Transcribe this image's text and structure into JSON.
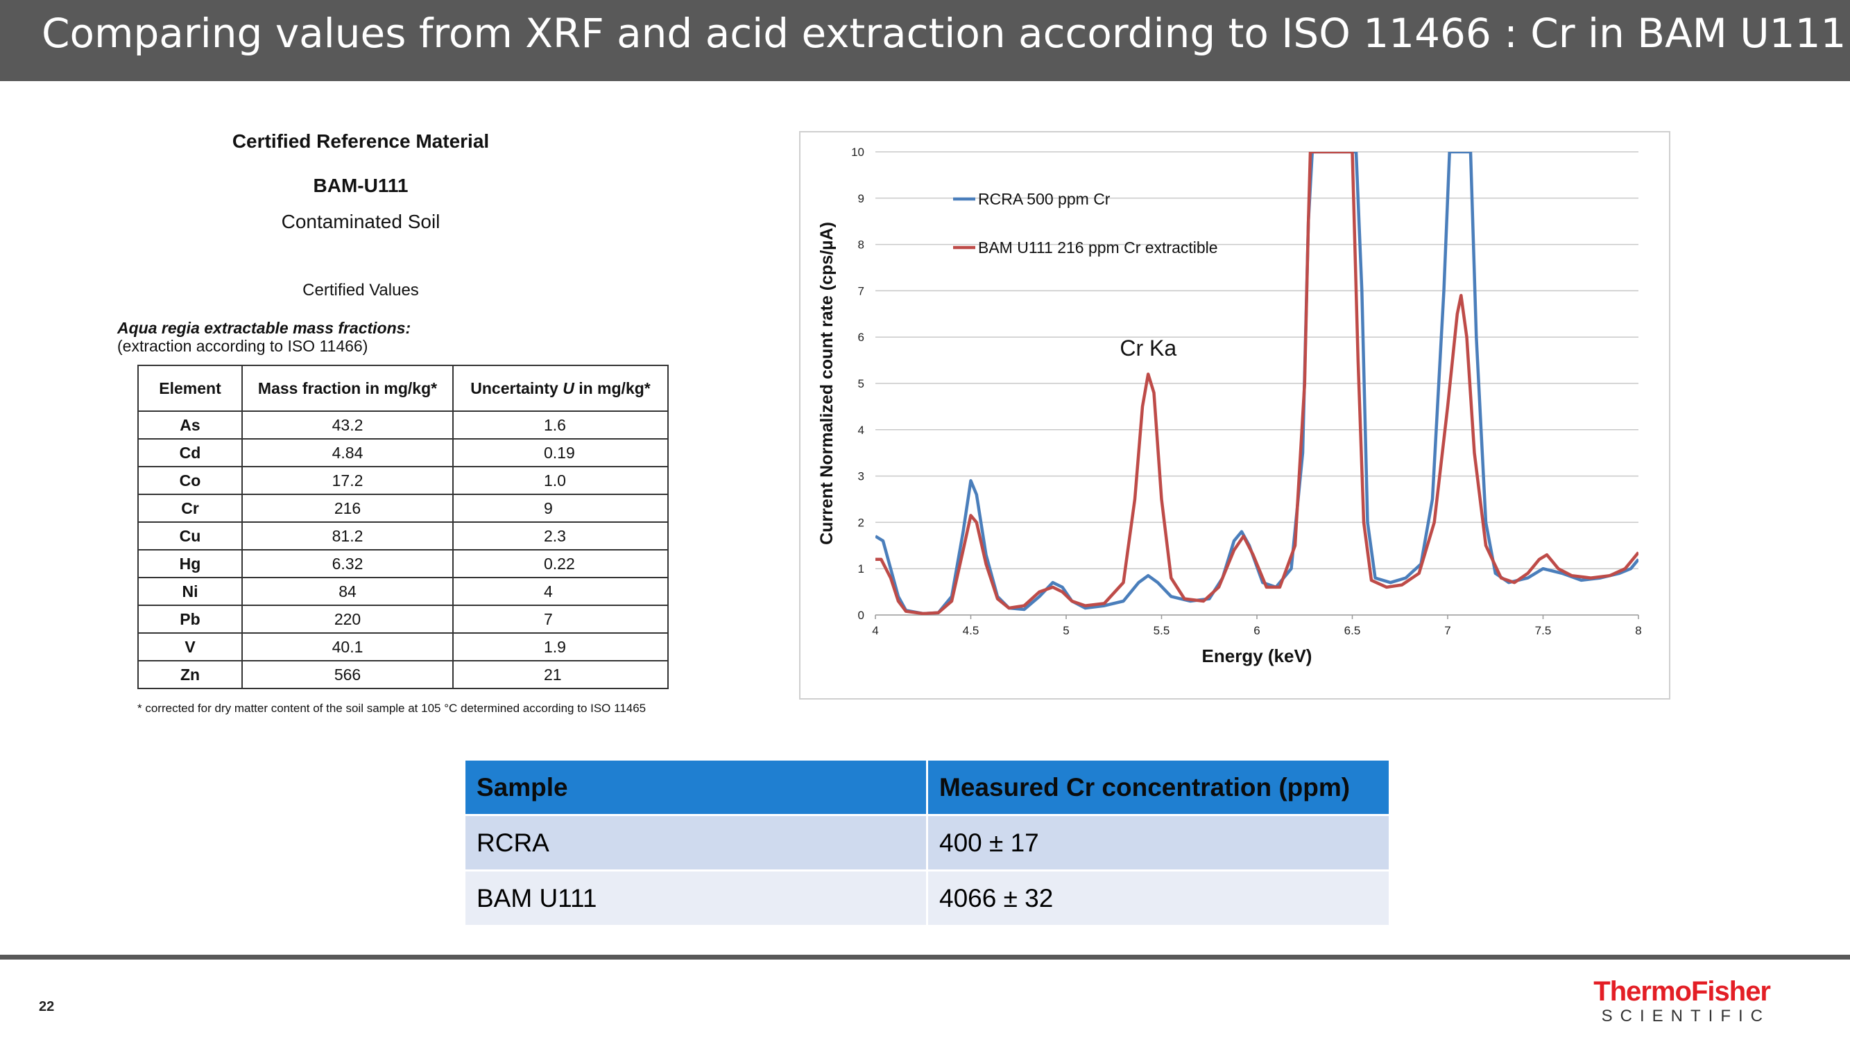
{
  "header": {
    "title": "Comparing values from XRF and acid extraction according to ISO 11466 : Cr in BAM U111"
  },
  "crm": {
    "heading": "Certified Reference Material",
    "material": "BAM-U111",
    "description": "Contaminated Soil",
    "certified_values_label": "Certified Values",
    "aqua_regia_label": "Aqua regia extractable mass fractions:",
    "extraction_note": "(extraction according to ISO 11466)",
    "table": {
      "columns": [
        "Element",
        "Mass fraction in mg/kg*",
        "Uncertainty U in mg/kg*"
      ],
      "rows": [
        {
          "element": "As",
          "mass": "43.2",
          "uncertainty": "1.6"
        },
        {
          "element": "Cd",
          "mass": "4.84",
          "uncertainty": "0.19"
        },
        {
          "element": "Co",
          "mass": "17.2",
          "uncertainty": "1.0"
        },
        {
          "element": "Cr",
          "mass": "216",
          "uncertainty": "9"
        },
        {
          "element": "Cu",
          "mass": "81.2",
          "uncertainty": "2.3"
        },
        {
          "element": "Hg",
          "mass": "6.32",
          "uncertainty": "0.22"
        },
        {
          "element": "Ni",
          "mass": "84",
          "uncertainty": "4"
        },
        {
          "element": "Pb",
          "mass": "220",
          "uncertainty": "7"
        },
        {
          "element": "V",
          "mass": "40.1",
          "uncertainty": "1.9"
        },
        {
          "element": "Zn",
          "mass": "566",
          "uncertainty": "21"
        }
      ]
    },
    "footnote": "* corrected for dry matter content of the soil sample at 105 °C determined according to ISO 11465"
  },
  "chart_data": {
    "type": "line",
    "xlabel": "Energy (keV)",
    "ylabel": "Current Normalized count rate (cps/µA)",
    "xlim": [
      4,
      8
    ],
    "ylim": [
      0,
      10
    ],
    "x_ticks": [
      "4",
      "4.5",
      "5",
      "5.5",
      "6",
      "6.5",
      "7",
      "7.5",
      "8"
    ],
    "y_ticks": [
      "0",
      "1",
      "2",
      "3",
      "4",
      "5",
      "6",
      "7",
      "8",
      "9",
      "10"
    ],
    "grid": "horizontal",
    "legend_position": "top-left",
    "annotations": [
      {
        "text": "Cr Ka",
        "x": 5.43,
        "y": 5.6
      }
    ],
    "series": [
      {
        "name": "RCRA 500 ppm Cr",
        "color": "#4a7ebb",
        "points": [
          [
            4.0,
            1.7
          ],
          [
            4.04,
            1.6
          ],
          [
            4.08,
            1.0
          ],
          [
            4.12,
            0.4
          ],
          [
            4.16,
            0.1
          ],
          [
            4.25,
            0.03
          ],
          [
            4.33,
            0.05
          ],
          [
            4.4,
            0.4
          ],
          [
            4.46,
            1.8
          ],
          [
            4.5,
            2.9
          ],
          [
            4.53,
            2.6
          ],
          [
            4.58,
            1.3
          ],
          [
            4.64,
            0.4
          ],
          [
            4.7,
            0.15
          ],
          [
            4.78,
            0.12
          ],
          [
            4.86,
            0.4
          ],
          [
            4.93,
            0.7
          ],
          [
            4.98,
            0.6
          ],
          [
            5.03,
            0.3
          ],
          [
            5.1,
            0.15
          ],
          [
            5.2,
            0.2
          ],
          [
            5.3,
            0.3
          ],
          [
            5.38,
            0.7
          ],
          [
            5.43,
            0.85
          ],
          [
            5.48,
            0.7
          ],
          [
            5.55,
            0.4
          ],
          [
            5.65,
            0.3
          ],
          [
            5.75,
            0.35
          ],
          [
            5.82,
            0.8
          ],
          [
            5.88,
            1.6
          ],
          [
            5.92,
            1.8
          ],
          [
            5.96,
            1.5
          ],
          [
            6.03,
            0.7
          ],
          [
            6.1,
            0.6
          ],
          [
            6.18,
            1.0
          ],
          [
            6.24,
            3.5
          ],
          [
            6.27,
            8.5
          ],
          [
            6.29,
            10.0
          ],
          [
            6.52,
            10.0
          ],
          [
            6.55,
            7.0
          ],
          [
            6.58,
            2.0
          ],
          [
            6.62,
            0.8
          ],
          [
            6.7,
            0.7
          ],
          [
            6.78,
            0.8
          ],
          [
            6.86,
            1.1
          ],
          [
            6.92,
            2.5
          ],
          [
            6.98,
            7.0
          ],
          [
            7.01,
            10.0
          ],
          [
            7.12,
            10.0
          ],
          [
            7.15,
            6.0
          ],
          [
            7.2,
            2.0
          ],
          [
            7.25,
            0.9
          ],
          [
            7.32,
            0.7
          ],
          [
            7.42,
            0.8
          ],
          [
            7.5,
            1.0
          ],
          [
            7.6,
            0.9
          ],
          [
            7.7,
            0.75
          ],
          [
            7.8,
            0.8
          ],
          [
            7.9,
            0.9
          ],
          [
            7.96,
            1.0
          ],
          [
            8.0,
            1.2
          ]
        ]
      },
      {
        "name": "BAM U111 216 ppm Cr extractible",
        "color": "#be4b48",
        "points": [
          [
            4.0,
            1.2
          ],
          [
            4.03,
            1.2
          ],
          [
            4.08,
            0.8
          ],
          [
            4.12,
            0.3
          ],
          [
            4.16,
            0.08
          ],
          [
            4.25,
            0.03
          ],
          [
            4.33,
            0.05
          ],
          [
            4.4,
            0.3
          ],
          [
            4.46,
            1.4
          ],
          [
            4.5,
            2.15
          ],
          [
            4.53,
            2.0
          ],
          [
            4.58,
            1.1
          ],
          [
            4.64,
            0.35
          ],
          [
            4.7,
            0.15
          ],
          [
            4.78,
            0.2
          ],
          [
            4.86,
            0.5
          ],
          [
            4.93,
            0.6
          ],
          [
            4.98,
            0.5
          ],
          [
            5.03,
            0.3
          ],
          [
            5.1,
            0.2
          ],
          [
            5.2,
            0.25
          ],
          [
            5.3,
            0.7
          ],
          [
            5.36,
            2.5
          ],
          [
            5.4,
            4.5
          ],
          [
            5.43,
            5.2
          ],
          [
            5.46,
            4.8
          ],
          [
            5.5,
            2.5
          ],
          [
            5.55,
            0.8
          ],
          [
            5.62,
            0.35
          ],
          [
            5.72,
            0.3
          ],
          [
            5.8,
            0.6
          ],
          [
            5.88,
            1.4
          ],
          [
            5.93,
            1.7
          ],
          [
            5.98,
            1.3
          ],
          [
            6.05,
            0.6
          ],
          [
            6.12,
            0.6
          ],
          [
            6.2,
            1.5
          ],
          [
            6.25,
            5.0
          ],
          [
            6.27,
            8.5
          ],
          [
            6.28,
            10.0
          ],
          [
            6.5,
            10.0
          ],
          [
            6.53,
            5.5
          ],
          [
            6.56,
            2.0
          ],
          [
            6.6,
            0.75
          ],
          [
            6.68,
            0.6
          ],
          [
            6.76,
            0.65
          ],
          [
            6.85,
            0.9
          ],
          [
            6.93,
            2.0
          ],
          [
            7.0,
            4.5
          ],
          [
            7.05,
            6.5
          ],
          [
            7.07,
            6.9
          ],
          [
            7.1,
            6.0
          ],
          [
            7.14,
            3.5
          ],
          [
            7.2,
            1.5
          ],
          [
            7.28,
            0.8
          ],
          [
            7.35,
            0.7
          ],
          [
            7.42,
            0.9
          ],
          [
            7.48,
            1.2
          ],
          [
            7.52,
            1.3
          ],
          [
            7.58,
            1.0
          ],
          [
            7.65,
            0.85
          ],
          [
            7.75,
            0.8
          ],
          [
            7.85,
            0.85
          ],
          [
            7.93,
            1.0
          ],
          [
            8.0,
            1.35
          ]
        ]
      }
    ]
  },
  "measured": {
    "columns": [
      "Sample",
      "Measured Cr concentration (ppm)"
    ],
    "rows": [
      {
        "sample": "RCRA",
        "value": "400 ± 17"
      },
      {
        "sample": "BAM U111",
        "value": "4066 ± 32"
      }
    ]
  },
  "footer": {
    "page_number": "22",
    "logo_top": "ThermoFisher",
    "logo_bottom": "SCIENTIFIC"
  },
  "colors": {
    "title_bar": "#595959",
    "table_header": "#1f7fd1",
    "row1": "#cfdaee",
    "row2": "#e9edf6",
    "brand_red": "#e31e25"
  }
}
